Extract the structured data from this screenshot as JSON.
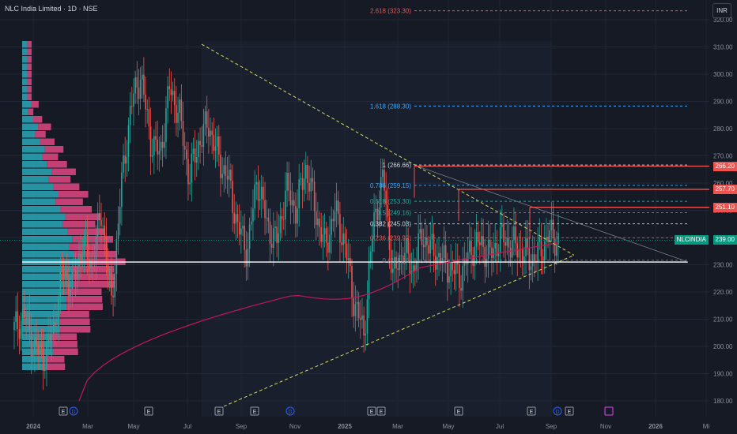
{
  "header": {
    "title": "NLC India Limited · 1D · NSE",
    "currency": "INR"
  },
  "colors": {
    "bg": "#161a25",
    "up": "#26a69a",
    "down": "#ef5350",
    "fib": "#d1d4dc",
    "trend": "#d7d95e",
    "poc": "#ffffff",
    "ma": "#c2185b"
  },
  "chart_data": {
    "type": "line",
    "title": "NLC India Limited · 1D · NSE",
    "ylim": [
      177,
      325
    ],
    "y_ticks": [
      "180.00",
      "190.00",
      "200.00",
      "210.00",
      "220.00",
      "230.00",
      "240.00",
      "250.00",
      "260.00",
      "270.00",
      "280.00",
      "290.00",
      "300.00",
      "310.00",
      "320.00"
    ],
    "x_ticks": [
      "2024",
      "Mar",
      "May",
      "Jul",
      "Sep",
      "Nov",
      "2025",
      "Mar",
      "May",
      "Jul",
      "Sep",
      "Nov",
      "2026",
      "Mi"
    ],
    "series": [
      {
        "values": [
          206,
          212,
          200,
          196,
          205,
          228,
          222,
          238,
          230,
          250,
          215,
          258,
          288,
          300,
          276,
          270,
          295,
          285,
          262,
          275,
          282,
          269,
          262,
          244,
          235,
          262,
          245,
          238,
          258,
          250,
          266,
          250,
          236,
          250,
          238,
          216,
          205,
          246,
          262,
          225,
          236,
          228,
          241,
          235,
          232,
          228,
          226,
          236,
          238,
          233,
          240,
          238,
          236,
          232,
          234,
          241,
          239
        ]
      }
    ],
    "fib_levels": [
      {
        "label": "0 (231.66)",
        "value": 231.66
      },
      {
        "label": "0.236 (239.92)",
        "value": 239.92
      },
      {
        "label": "0.382 (245.03)",
        "value": 245.03
      },
      {
        "label": "0.5 (249.16)",
        "value": 249.16
      },
      {
        "label": "0.618 (253.30)",
        "value": 253.3
      },
      {
        "label": "0.786 (259.15)",
        "value": 259.15
      },
      {
        "label": "1 (266.66)",
        "value": 266.66
      },
      {
        "label": "1.618 (288.30)",
        "value": 288.3
      },
      {
        "label": "2.618 (323.30)",
        "value": 323.3
      }
    ],
    "resistance": [
      {
        "label": "266.20",
        "value": 266.2
      },
      {
        "label": "257.70",
        "value": 257.7
      },
      {
        "label": "251.10",
        "value": 251.1
      }
    ],
    "last_price": {
      "symbol": "NLCINDIA",
      "label": "239.00",
      "value": 239.0
    },
    "poc_value": 231.0,
    "events": [
      "E",
      "D",
      "E",
      "E",
      "E",
      "D",
      "E",
      "E",
      "E",
      "E",
      "D",
      "E"
    ]
  }
}
